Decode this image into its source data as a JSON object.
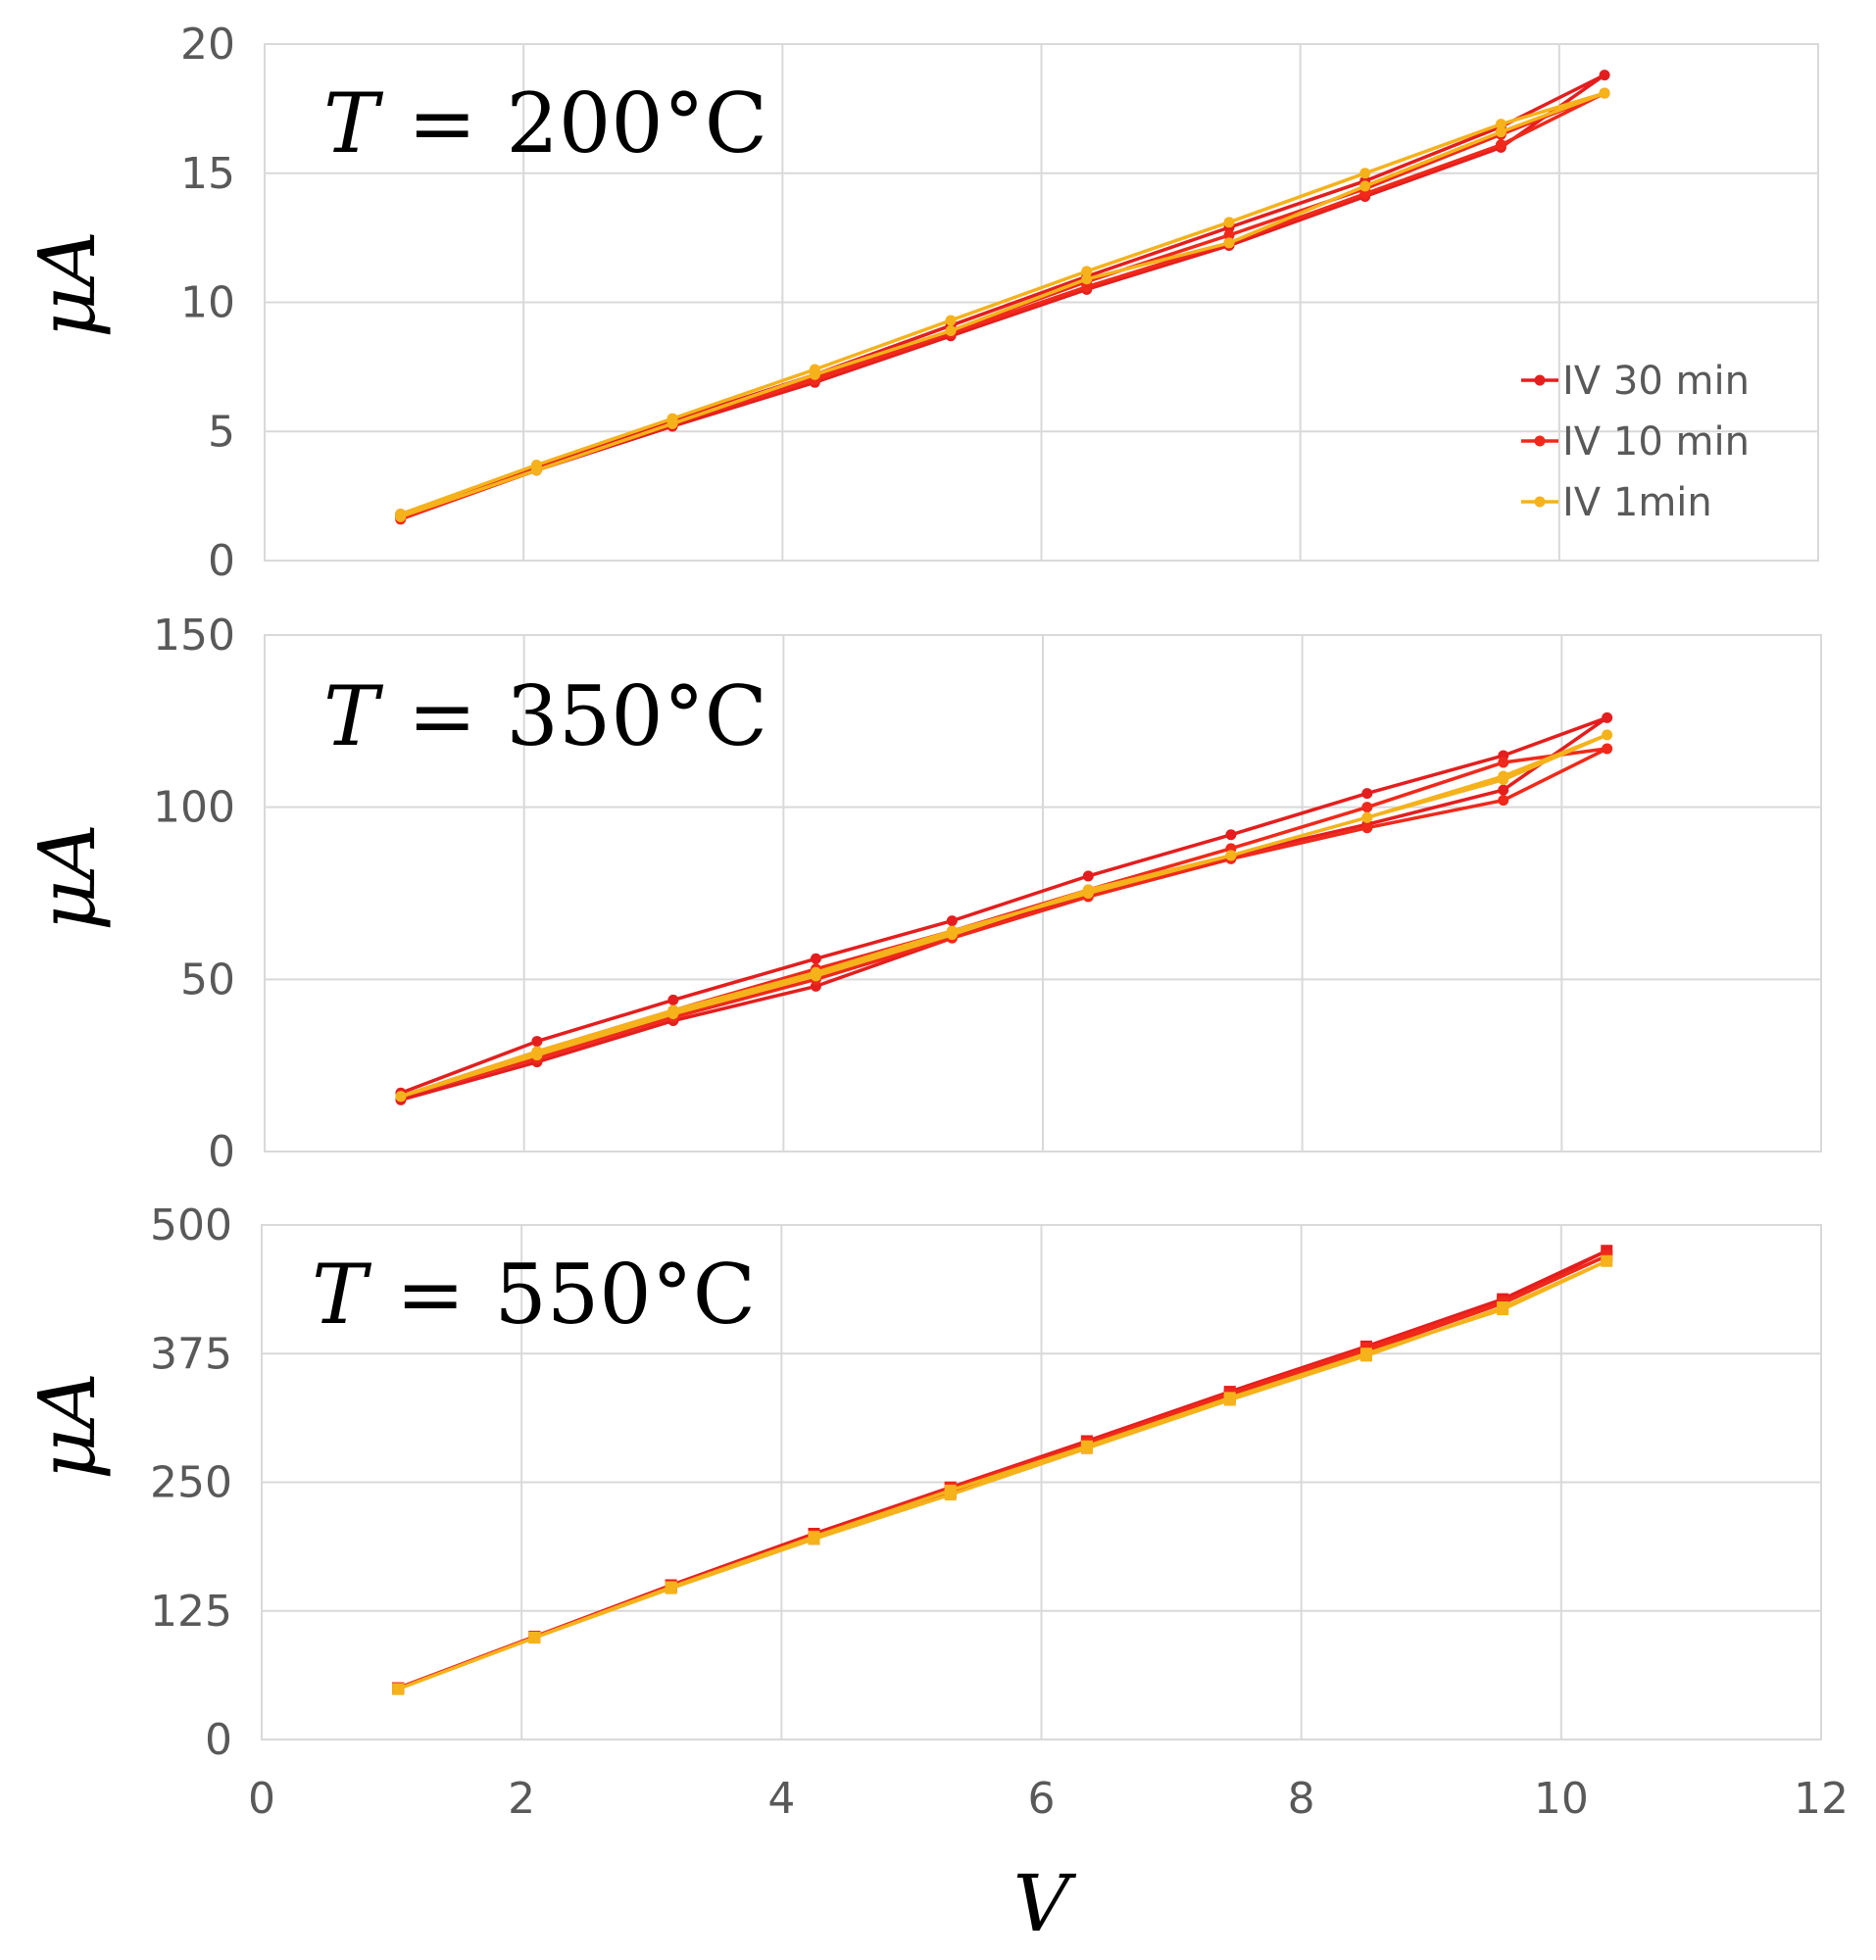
{
  "chart_data": [
    {
      "type": "line",
      "annotation_var": "T",
      "annotation_eq": "=",
      "annotation_value": "200°C",
      "ylabel": "μA",
      "xlabel": "",
      "xlim": [
        0,
        12
      ],
      "ylim": [
        0,
        20
      ],
      "yticks": [
        "0",
        "5",
        "10",
        "15",
        "20"
      ],
      "show_x_tick_labels": false,
      "grid": true,
      "legend": "right",
      "series": [
        {
          "name": "IV 30 min",
          "color": "#e41e1e",
          "x": [
            1.05,
            2.1,
            3.15,
            4.25,
            5.3,
            6.35,
            7.45,
            8.5,
            9.55,
            10.35,
            9.55,
            8.5,
            7.45,
            6.35,
            5.3,
            4.25,
            3.15,
            2.1,
            1.05
          ],
          "y": [
            1.8,
            3.6,
            5.4,
            7.2,
            9.1,
            11.0,
            12.9,
            14.7,
            16.8,
            18.8,
            16.0,
            14.1,
            12.2,
            10.5,
            8.7,
            6.9,
            5.2,
            3.5,
            1.7
          ]
        },
        {
          "name": "IV 10 min",
          "color": "#f0291a",
          "x": [
            1.05,
            2.1,
            3.15,
            4.25,
            5.3,
            6.35,
            7.45,
            8.5,
            9.55,
            10.35,
            9.55,
            8.5,
            7.45,
            6.35,
            5.3,
            4.25,
            3.15,
            2.1,
            1.05
          ],
          "y": [
            1.7,
            3.5,
            5.3,
            7.1,
            8.9,
            10.8,
            12.6,
            14.4,
            16.5,
            18.1,
            16.1,
            14.2,
            12.3,
            10.6,
            8.8,
            7.0,
            5.3,
            3.5,
            1.6
          ]
        },
        {
          "name": "IV 1min",
          "color": "#f5b21b",
          "x": [
            1.05,
            2.1,
            3.15,
            4.25,
            5.3,
            6.35,
            7.45,
            8.5,
            9.55,
            10.35,
            9.55,
            8.5,
            7.45,
            6.35,
            5.3,
            4.25,
            3.15,
            2.1,
            1.05
          ],
          "y": [
            1.8,
            3.7,
            5.5,
            7.4,
            9.3,
            11.2,
            13.1,
            15.0,
            16.9,
            18.1,
            16.6,
            14.5,
            12.3,
            10.9,
            8.9,
            7.2,
            5.3,
            3.5,
            1.7
          ]
        }
      ]
    },
    {
      "type": "line",
      "annotation_var": "T",
      "annotation_eq": "=",
      "annotation_value": "350°C",
      "ylabel": "μA",
      "xlabel": "",
      "xlim": [
        0,
        12
      ],
      "ylim": [
        0,
        150
      ],
      "yticks": [
        "0",
        "50",
        "100",
        "150"
      ],
      "show_x_tick_labels": false,
      "grid": true,
      "series": [
        {
          "name": "IV 30 min",
          "color": "#e41e1e",
          "x": [
            1.05,
            2.1,
            3.15,
            4.25,
            5.3,
            6.35,
            7.45,
            8.5,
            9.55,
            10.35,
            9.55,
            8.5,
            7.45,
            6.35,
            5.3,
            4.25,
            3.15,
            2.1,
            1.05
          ],
          "y": [
            17,
            32,
            44,
            56,
            67,
            80,
            92,
            104,
            115,
            126,
            105,
            95,
            86,
            75,
            62,
            48,
            38,
            26,
            15
          ]
        },
        {
          "name": "IV 10 min",
          "color": "#f0291a",
          "x": [
            1.05,
            2.1,
            3.15,
            4.25,
            5.3,
            6.35,
            7.45,
            8.5,
            9.55,
            10.35,
            9.55,
            8.5,
            7.45,
            6.35,
            5.3,
            4.25,
            3.15,
            2.1,
            1.05
          ],
          "y": [
            16,
            29,
            41,
            53,
            64,
            76,
            88,
            100,
            113,
            117,
            102,
            94,
            85,
            74,
            62,
            50,
            39,
            27,
            16
          ]
        },
        {
          "name": "IV 1min",
          "color": "#f5b21b",
          "x": [
            1.05,
            2.1,
            3.15,
            4.25,
            5.3,
            6.35,
            7.45,
            8.5,
            9.55,
            10.35,
            9.55,
            8.5,
            7.45,
            6.35,
            5.3,
            4.25,
            3.15,
            2.1,
            1.05
          ],
          "y": [
            16,
            29,
            41,
            52,
            64,
            75,
            86,
            97,
            109,
            121,
            108,
            97,
            86,
            76,
            63,
            51,
            40,
            28,
            16
          ]
        }
      ]
    },
    {
      "type": "line",
      "annotation_var": "T",
      "annotation_eq": "=",
      "annotation_value": "550°C",
      "ylabel": "μA",
      "xlabel": "V",
      "xlim": [
        0,
        12
      ],
      "ylim": [
        0,
        500
      ],
      "yticks": [
        "0",
        "125",
        "250",
        "375",
        "500"
      ],
      "xticks": [
        "0",
        "2",
        "4",
        "6",
        "8",
        "10",
        "12"
      ],
      "show_x_tick_labels": true,
      "grid": true,
      "series": [
        {
          "name": "IV 30 min",
          "color": "#e41e1e",
          "x": [
            1.05,
            2.1,
            3.15,
            4.25,
            5.3,
            6.35,
            7.45,
            8.5,
            9.55,
            10.35,
            9.55,
            8.5,
            7.45,
            6.35,
            5.3,
            4.25,
            3.15,
            2.1,
            1.05
          ],
          "y": [
            50,
            100,
            150,
            200,
            245,
            290,
            338,
            382,
            428,
            475,
            425,
            378,
            334,
            286,
            240,
            195,
            148,
            99,
            50
          ]
        },
        {
          "name": "IV 10 min",
          "color": "#f0291a",
          "x": [
            1.05,
            2.1,
            3.15,
            4.25,
            5.3,
            6.35,
            7.45,
            8.5,
            9.55,
            10.35,
            9.55,
            8.5,
            7.45,
            6.35,
            5.3,
            4.25,
            3.15,
            2.1,
            1.05
          ],
          "y": [
            50,
            100,
            149,
            198,
            244,
            288,
            336,
            380,
            425,
            470,
            424,
            377,
            332,
            285,
            240,
            196,
            149,
            100,
            50
          ]
        },
        {
          "name": "IV 1min",
          "color": "#f5b21b",
          "x": [
            1.05,
            2.1,
            3.15,
            4.25,
            5.3,
            6.35,
            7.45,
            8.5,
            9.55,
            10.35,
            9.55,
            8.5,
            7.45,
            6.35,
            5.3,
            4.25,
            3.15,
            2.1,
            1.05
          ],
          "y": [
            49,
            99,
            148,
            197,
            242,
            285,
            332,
            375,
            418,
            465,
            420,
            373,
            330,
            283,
            238,
            195,
            147,
            99,
            49
          ]
        }
      ]
    }
  ]
}
